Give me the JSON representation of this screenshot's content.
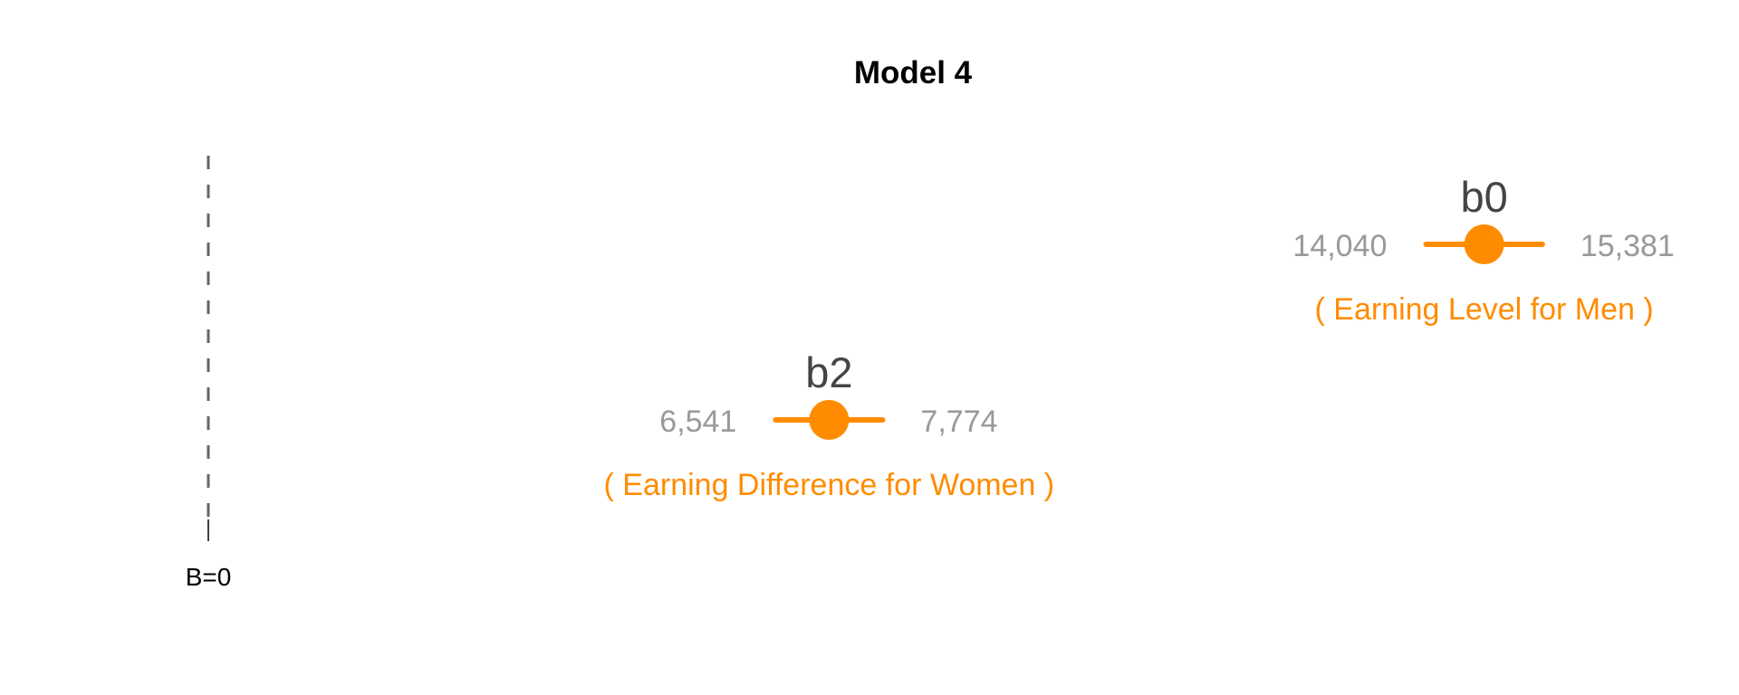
{
  "chart_data": {
    "type": "scatter",
    "title": "Model 4",
    "reference_line": {
      "value": 0,
      "label": "B=0",
      "style": "dashed"
    },
    "xlim": [
      0,
      16500
    ],
    "grid": false,
    "series": [
      {
        "name": "b0",
        "estimate": 14710,
        "ci_low": 14040,
        "ci_high": 15381,
        "ci_low_label": "14,040",
        "ci_high_label": "15,381",
        "description": "( Earning Level for Men )"
      },
      {
        "name": "b2",
        "estimate": 7157,
        "ci_low": 6541,
        "ci_high": 7774,
        "ci_low_label": "6,541",
        "ci_high_label": "7,774",
        "description": "( Earning Difference for Women )"
      }
    ],
    "colors": {
      "accent": "#ff8c00",
      "label": "#444444",
      "ci_text": "#999999",
      "ref_line": "#666666"
    }
  }
}
